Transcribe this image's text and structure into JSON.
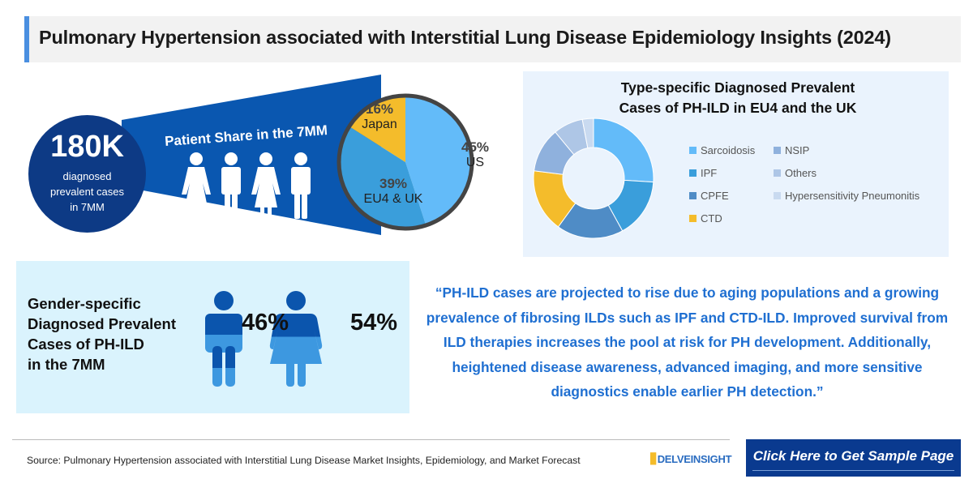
{
  "title": "Pulmonary Hypertension associated with Interstitial Lung Disease Epidemiology Insights (2024)",
  "total": {
    "value": "180K",
    "label": "diagnosed prevalent cases in 7MM"
  },
  "patient_share": {
    "heading": "Patient Share in the 7MM",
    "icons": [
      "female-icon",
      "male-icon",
      "female-icon",
      "male-icon"
    ]
  },
  "colors": {
    "us": "#63bbf9",
    "eu": "#3a9edb",
    "japan": "#f4bc2b",
    "dark": "#0d3a85",
    "beam": "#0a57b0"
  },
  "chart_data": [
    {
      "type": "pie",
      "title": "Patient Share in the 7MM",
      "slices": [
        {
          "label": "US",
          "value": 45,
          "display": "45%",
          "color": "#63bbf9"
        },
        {
          "label": "EU4 & UK",
          "value": 39,
          "display": "39%",
          "color": "#3a9edb"
        },
        {
          "label": "Japan",
          "value": 16,
          "display": "16%",
          "color": "#f4bc2b"
        }
      ]
    },
    {
      "type": "donut",
      "title": "Type-specific Diagnosed Prevalent Cases of PH-ILD in EU4 and the UK",
      "legend_position": "right",
      "slices": [
        {
          "label": "Sarcoidosis",
          "value": 26,
          "color": "#63bbf9"
        },
        {
          "label": "IPF",
          "value": 16,
          "color": "#3a9edb"
        },
        {
          "label": "CPFE",
          "value": 18,
          "color": "#4f8cc6"
        },
        {
          "label": "CTD",
          "value": 17,
          "color": "#f4bc2b"
        },
        {
          "label": "NSIP",
          "value": 12,
          "color": "#8fb1dd"
        },
        {
          "label": "Others",
          "value": 8,
          "color": "#aec6e6"
        },
        {
          "label": "Hypersensitivity Pneumonitis",
          "value": 3,
          "color": "#c9daf0"
        }
      ]
    }
  ],
  "gender": {
    "title_lines": [
      "Gender-specific",
      "Diagnosed Prevalent",
      "Cases of PH-ILD",
      "in the 7MM"
    ],
    "male": {
      "display": "46%",
      "value": 46
    },
    "female": {
      "display": "54%",
      "value": 54
    }
  },
  "quote": "“PH-ILD cases are projected to rise due to aging populations and a growing prevalence of fibrosing ILDs such as IPF and CTD-ILD. Improved survival from ILD therapies increases the pool at risk for PH development. Additionally, heightened disease awareness, advanced imaging, and more sensitive diagnostics enable earlier PH detection.”",
  "footer": {
    "source": "Source: Pulmonary Hypertension associated with Interstitial Lung Disease Market Insights, Epidemiology, and Market Forecast",
    "logo": "DELVEINSIGHT",
    "cta": "Click Here to Get Sample Page"
  }
}
